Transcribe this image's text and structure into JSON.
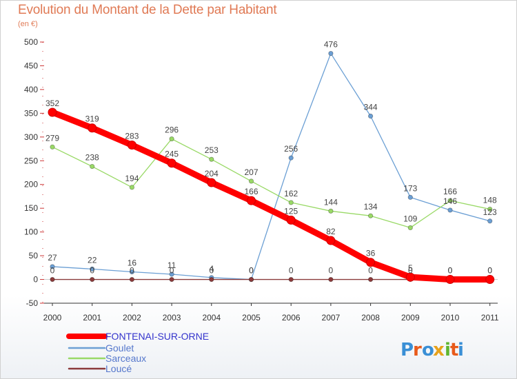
{
  "header": {
    "title": "Evolution du Montant de la Dette par Habitant",
    "subtitle": "(en €)"
  },
  "logo": {
    "text": "Proxiti"
  },
  "chart_data": {
    "type": "line",
    "title": "Evolution du Montant de la Dette par Habitant",
    "subtitle": "(en €)",
    "xlabel": "",
    "ylabel": "",
    "x": [
      "2000",
      "2001",
      "2002",
      "2003",
      "2004",
      "2005",
      "2006",
      "2007",
      "2008",
      "2009",
      "2010",
      "2011"
    ],
    "ylim": [
      -50,
      500
    ],
    "yticks": [
      -50,
      0,
      50,
      100,
      150,
      200,
      250,
      300,
      350,
      400,
      450,
      500
    ],
    "grid": false,
    "legend": "bottom-left",
    "series": [
      {
        "name": "FONTENAI-SUR-ORNE",
        "color": "#ff0000",
        "values": [
          352,
          319,
          283,
          245,
          204,
          166,
          125,
          82,
          36,
          5,
          0,
          0
        ],
        "labels": [
          "352",
          "319",
          "283",
          "245",
          "204",
          "166",
          "125",
          "82",
          "36",
          "5",
          "0",
          "0"
        ]
      },
      {
        "name": "Goulet",
        "color": "#6b9fd4",
        "values": [
          27,
          22,
          16,
          11,
          4,
          0,
          256,
          476,
          344,
          173,
          146,
          123
        ],
        "labels": [
          "27",
          "22",
          "16",
          "11",
          "4",
          "0",
          "256",
          "476",
          "344",
          "173",
          "146",
          "123"
        ]
      },
      {
        "name": "Sarceaux",
        "color": "#99d966",
        "values": [
          279,
          238,
          194,
          296,
          253,
          207,
          162,
          144,
          134,
          109,
          166,
          148
        ],
        "labels": [
          "279",
          "238",
          "194",
          "296",
          "253",
          "207",
          "162",
          "144",
          "134",
          "109",
          "166",
          "148"
        ]
      },
      {
        "name": "Loucé",
        "color": "#8b3a3a",
        "values": [
          0,
          0,
          0,
          0,
          0,
          0,
          0,
          0,
          0,
          0,
          0,
          0
        ],
        "labels": [
          "0",
          "0",
          "0",
          "0",
          "0",
          "0",
          "0",
          "0",
          "0",
          "0",
          "0",
          "0"
        ]
      }
    ]
  }
}
